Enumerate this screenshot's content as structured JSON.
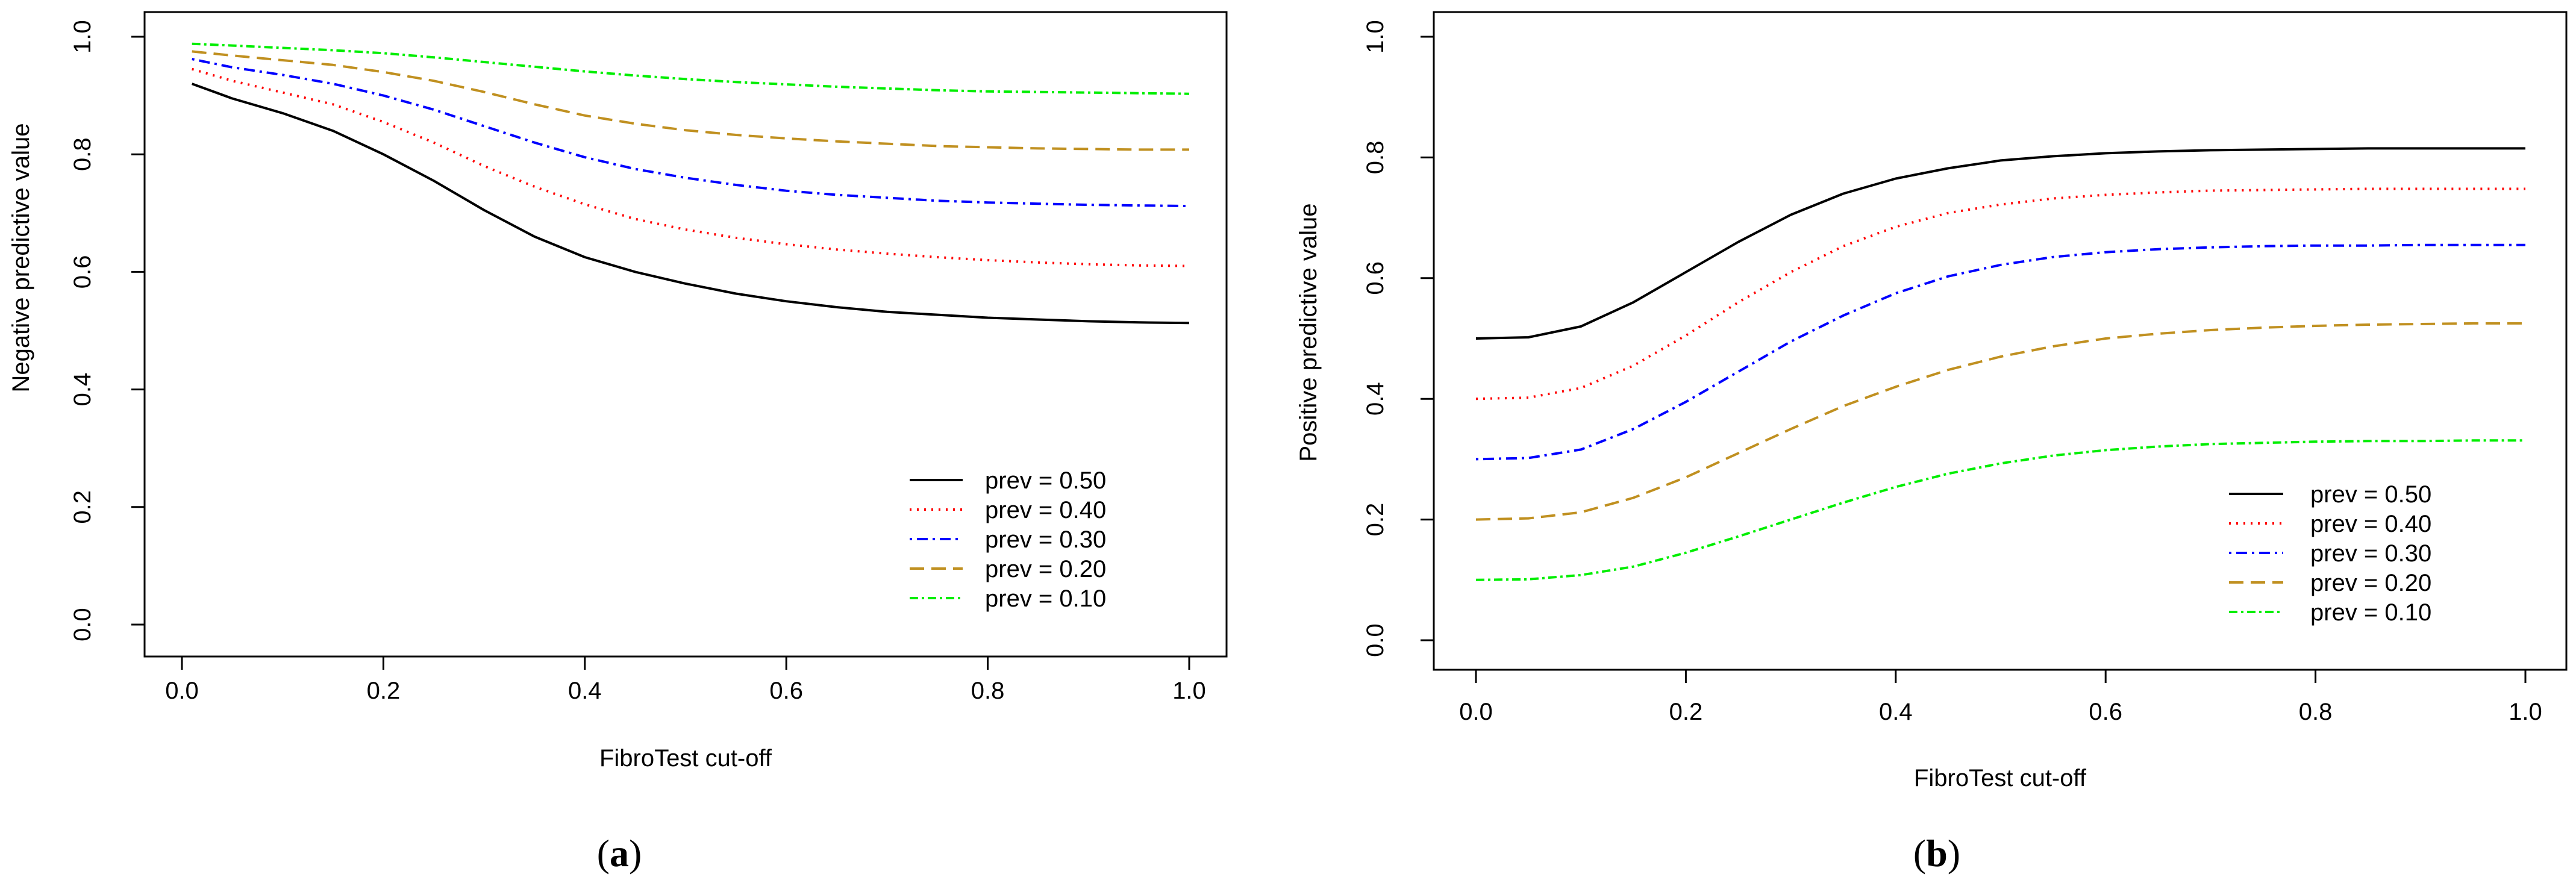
{
  "chart_data": [
    {
      "type": "line",
      "panel_label": "a",
      "xlabel": "FibroTest cut-off",
      "ylabel": "Negative predictive value",
      "xlim": [
        0,
        1
      ],
      "ylim": [
        0,
        1
      ],
      "xticks": [
        "0.0",
        "0.2",
        "0.4",
        "0.6",
        "0.8",
        "1.0"
      ],
      "yticks": [
        "0.0",
        "0.2",
        "0.4",
        "0.6",
        "0.8",
        "1.0"
      ],
      "legend_position": "bottom-right",
      "x": [
        0.01,
        0.05,
        0.1,
        0.15,
        0.2,
        0.25,
        0.3,
        0.35,
        0.4,
        0.45,
        0.5,
        0.55,
        0.6,
        0.65,
        0.7,
        0.75,
        0.8,
        0.85,
        0.9,
        0.95,
        1.0
      ],
      "series": [
        {
          "name": "prev = 0.50",
          "color": "#000000",
          "dash": "solid",
          "values": [
            0.92,
            0.895,
            0.87,
            0.84,
            0.8,
            0.755,
            0.705,
            0.66,
            0.625,
            0.6,
            0.58,
            0.563,
            0.55,
            0.54,
            0.532,
            0.527,
            0.522,
            0.519,
            0.516,
            0.514,
            0.513
          ]
        },
        {
          "name": "prev = 0.40",
          "color": "#ff0000",
          "dash": "dotted",
          "values": [
            0.945,
            0.925,
            0.905,
            0.885,
            0.855,
            0.82,
            0.78,
            0.745,
            0.715,
            0.69,
            0.672,
            0.658,
            0.647,
            0.638,
            0.631,
            0.625,
            0.62,
            0.616,
            0.613,
            0.611,
            0.61
          ]
        },
        {
          "name": "prev = 0.30",
          "color": "#0000ff",
          "dash": "dashdot",
          "values": [
            0.962,
            0.948,
            0.935,
            0.92,
            0.9,
            0.876,
            0.848,
            0.82,
            0.795,
            0.775,
            0.76,
            0.748,
            0.738,
            0.731,
            0.726,
            0.721,
            0.718,
            0.716,
            0.714,
            0.713,
            0.712
          ]
        },
        {
          "name": "prev = 0.20",
          "color": "#c09020",
          "dash": "longdash",
          "values": [
            0.975,
            0.968,
            0.96,
            0.952,
            0.94,
            0.925,
            0.906,
            0.885,
            0.866,
            0.852,
            0.841,
            0.833,
            0.827,
            0.822,
            0.818,
            0.814,
            0.812,
            0.81,
            0.809,
            0.808,
            0.808
          ]
        },
        {
          "name": "prev = 0.10",
          "color": "#00ee00",
          "dash": "twodash",
          "values": [
            0.988,
            0.985,
            0.981,
            0.977,
            0.972,
            0.965,
            0.957,
            0.949,
            0.941,
            0.934,
            0.928,
            0.923,
            0.919,
            0.915,
            0.912,
            0.909,
            0.907,
            0.906,
            0.905,
            0.904,
            0.903
          ]
        }
      ]
    },
    {
      "type": "line",
      "panel_label": "b",
      "xlabel": "FibroTest cut-off",
      "ylabel": "Positive predictive value",
      "xlim": [
        0,
        1
      ],
      "ylim": [
        0,
        1
      ],
      "xticks": [
        "0.0",
        "0.2",
        "0.4",
        "0.6",
        "0.8",
        "1.0"
      ],
      "yticks": [
        "0.0",
        "0.2",
        "0.4",
        "0.6",
        "0.8",
        "1.0"
      ],
      "legend_position": "bottom-right",
      "x": [
        0.0,
        0.05,
        0.1,
        0.15,
        0.2,
        0.25,
        0.3,
        0.35,
        0.4,
        0.45,
        0.5,
        0.55,
        0.6,
        0.65,
        0.7,
        0.75,
        0.8,
        0.85,
        0.9,
        0.95,
        1.0
      ],
      "series": [
        {
          "name": "prev = 0.50",
          "color": "#000000",
          "dash": "solid",
          "values": [
            0.5,
            0.502,
            0.52,
            0.56,
            0.61,
            0.66,
            0.705,
            0.74,
            0.765,
            0.782,
            0.795,
            0.802,
            0.807,
            0.81,
            0.812,
            0.813,
            0.814,
            0.815,
            0.815,
            0.815,
            0.815
          ]
        },
        {
          "name": "prev = 0.40",
          "color": "#ff0000",
          "dash": "dotted",
          "values": [
            0.4,
            0.402,
            0.418,
            0.455,
            0.505,
            0.56,
            0.61,
            0.653,
            0.685,
            0.708,
            0.722,
            0.732,
            0.738,
            0.742,
            0.745,
            0.746,
            0.747,
            0.748,
            0.748,
            0.748,
            0.748
          ]
        },
        {
          "name": "prev = 0.30",
          "color": "#0000ff",
          "dash": "dashdot",
          "values": [
            0.3,
            0.302,
            0.316,
            0.35,
            0.395,
            0.445,
            0.495,
            0.538,
            0.575,
            0.603,
            0.622,
            0.635,
            0.643,
            0.648,
            0.651,
            0.653,
            0.654,
            0.654,
            0.655,
            0.655,
            0.655
          ]
        },
        {
          "name": "prev = 0.20",
          "color": "#c09020",
          "dash": "longdash",
          "values": [
            0.2,
            0.202,
            0.212,
            0.236,
            0.27,
            0.31,
            0.35,
            0.388,
            0.42,
            0.448,
            0.47,
            0.487,
            0.5,
            0.508,
            0.514,
            0.518,
            0.521,
            0.523,
            0.524,
            0.525,
            0.525
          ]
        },
        {
          "name": "prev = 0.10",
          "color": "#00ee00",
          "dash": "twodash",
          "values": [
            0.1,
            0.101,
            0.108,
            0.122,
            0.145,
            0.172,
            0.2,
            0.228,
            0.254,
            0.276,
            0.293,
            0.306,
            0.315,
            0.321,
            0.325,
            0.327,
            0.329,
            0.33,
            0.33,
            0.331,
            0.331
          ]
        }
      ]
    }
  ]
}
